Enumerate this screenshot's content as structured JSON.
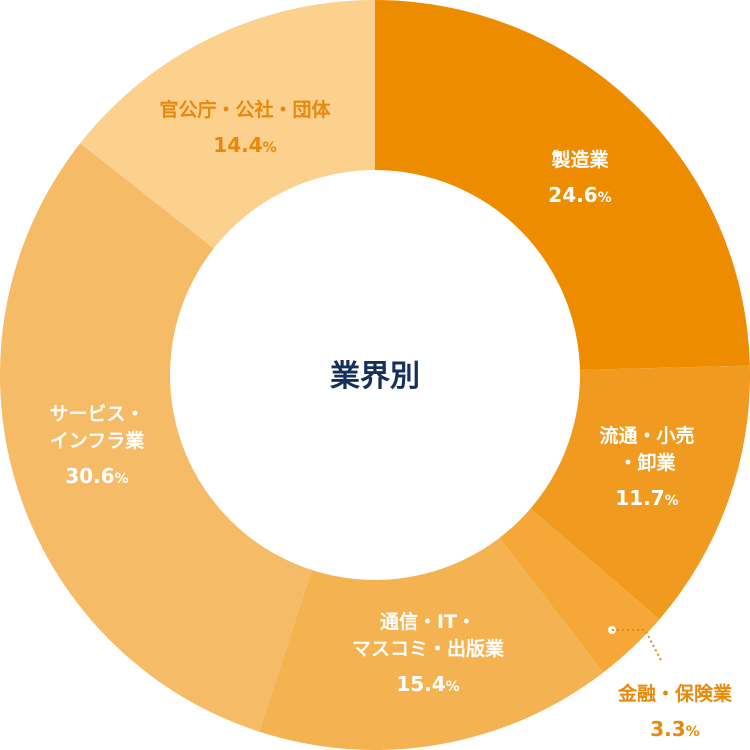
{
  "chart_data": {
    "type": "pie",
    "title": "業界別",
    "unit": "%",
    "slices": [
      {
        "label_lines": [
          "製造業"
        ],
        "value": 24.6,
        "color": "#ee8c00",
        "label_color": "#ffffff"
      },
      {
        "label_lines": [
          "流通・小売",
          "・卸業"
        ],
        "value": 11.7,
        "color": "#f09a20",
        "label_color": "#ffffff"
      },
      {
        "label_lines": [
          "金融・保険業"
        ],
        "value": 3.3,
        "color": "#f5a838",
        "label_color": "#e8890c"
      },
      {
        "label_lines": [
          "通信・IT・",
          "マスコミ・出版業"
        ],
        "value": 15.4,
        "color": "#f4b251",
        "label_color": "#ffffff"
      },
      {
        "label_lines": [
          "サービス・",
          "インフラ業"
        ],
        "value": 30.6,
        "color": "#f5bb66",
        "label_color": "#ffffff"
      },
      {
        "label_lines": [
          "官公庁・公社・団体"
        ],
        "value": 14.4,
        "color": "#fcd08d",
        "label_color": "#e8890c"
      }
    ]
  }
}
